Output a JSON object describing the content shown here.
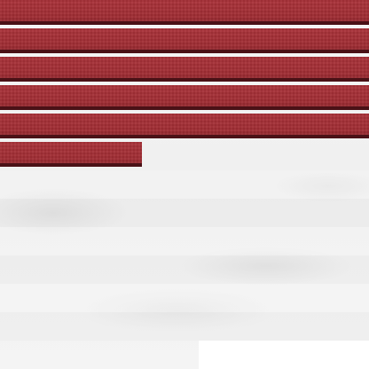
{
  "scene": {
    "colors": {
      "bar_fill": "#a02e35",
      "bar_shadow": "#4a1116",
      "background": "#f3f3f3"
    },
    "progress_bars": [
      {
        "name": "bar-1",
        "fill_fraction": 1.0
      },
      {
        "name": "bar-2",
        "fill_fraction": 1.0
      },
      {
        "name": "bar-3",
        "fill_fraction": 1.0
      },
      {
        "name": "bar-4",
        "fill_fraction": 1.0
      },
      {
        "name": "bar-5",
        "fill_fraction": 1.0
      },
      {
        "name": "bar-6",
        "fill_fraction": 0.385
      }
    ]
  }
}
